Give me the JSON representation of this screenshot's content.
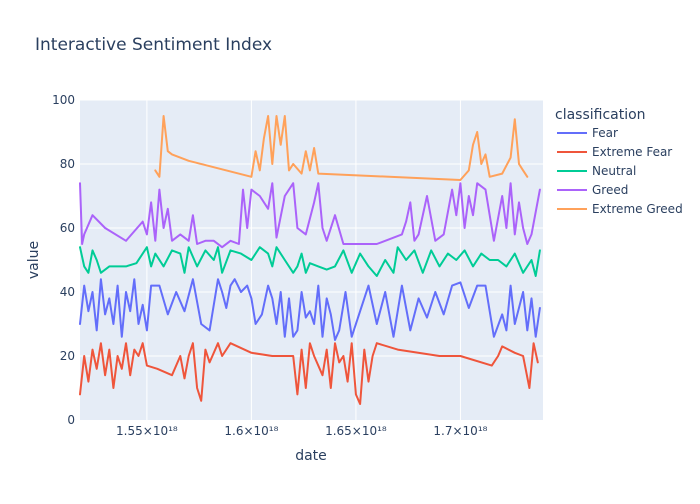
{
  "chart_data": {
    "type": "line",
    "title": "Interactive Sentiment Index",
    "xlabel": "date",
    "ylabel": "value",
    "xlim": [
      1.518e+18,
      1.7395e+18
    ],
    "ylim": [
      0,
      100
    ],
    "x_ticks": [
      {
        "value": 1.55e+18,
        "label": "1.55×10¹⁸"
      },
      {
        "value": 1.6e+18,
        "label": "1.6×10¹⁸"
      },
      {
        "value": 1.65e+18,
        "label": "1.65×10¹⁸"
      },
      {
        "value": 1.7e+18,
        "label": "1.7×10¹⁸"
      }
    ],
    "y_ticks": [
      0,
      20,
      40,
      60,
      80,
      100
    ],
    "legend_title": "classification",
    "legend_position": "right",
    "grid": true,
    "series": [
      {
        "name": "Fear",
        "color": "#636efa",
        "x": [
          1.518e+18,
          1.52e+18,
          1.522e+18,
          1.524e+18,
          1.526e+18,
          1.528e+18,
          1.53e+18,
          1.532e+18,
          1.534e+18,
          1.536e+18,
          1.538e+18,
          1.54e+18,
          1.542e+18,
          1.544e+18,
          1.546e+18,
          1.548e+18,
          1.55e+18,
          1.552e+18,
          1.556e+18,
          1.56e+18,
          1.564e+18,
          1.568e+18,
          1.572e+18,
          1.576e+18,
          1.58e+18,
          1.584e+18,
          1.586e+18,
          1.588e+18,
          1.59e+18,
          1.592e+18,
          1.595e+18,
          1.598e+18,
          1.6e+18,
          1.602e+18,
          1.605e+18,
          1.608e+18,
          1.61e+18,
          1.612e+18,
          1.614e+18,
          1.616e+18,
          1.618e+18,
          1.62e+18,
          1.622e+18,
          1.624e+18,
          1.626e+18,
          1.628e+18,
          1.63e+18,
          1.632e+18,
          1.634e+18,
          1.636e+18,
          1.638e+18,
          1.64e+18,
          1.642e+18,
          1.645e+18,
          1.648e+18,
          1.652e+18,
          1.656e+18,
          1.66e+18,
          1.664e+18,
          1.668e+18,
          1.672e+18,
          1.676e+18,
          1.68e+18,
          1.684e+18,
          1.688e+18,
          1.692e+18,
          1.696e+18,
          1.7e+18,
          1.704e+18,
          1.708e+18,
          1.712e+18,
          1.716e+18,
          1.72e+18,
          1.722e+18,
          1.724e+18,
          1.726e+18,
          1.73e+18,
          1.732e+18,
          1.734e+18,
          1.736e+18,
          1.738e+18
        ],
        "values": [
          30,
          42,
          34,
          40,
          28,
          44,
          33,
          38,
          30,
          42,
          26,
          40,
          34,
          44,
          30,
          36,
          28,
          42,
          42,
          33,
          40,
          34,
          44,
          30,
          28,
          44,
          40,
          35,
          42,
          44,
          40,
          42,
          38,
          30,
          33,
          42,
          38,
          30,
          40,
          26,
          38,
          26,
          28,
          40,
          32,
          34,
          30,
          42,
          26,
          38,
          33,
          25,
          28,
          40,
          26,
          34,
          42,
          30,
          40,
          26,
          42,
          28,
          38,
          32,
          40,
          33,
          42,
          43,
          35,
          42,
          42,
          26,
          33,
          28,
          42,
          30,
          40,
          28,
          38,
          26,
          35
        ]
      },
      {
        "name": "Extreme Fear",
        "color": "#ef553b",
        "x": [
          1.518e+18,
          1.52e+18,
          1.522e+18,
          1.524e+18,
          1.526e+18,
          1.528e+18,
          1.53e+18,
          1.532e+18,
          1.534e+18,
          1.536e+18,
          1.538e+18,
          1.54e+18,
          1.542e+18,
          1.544e+18,
          1.546e+18,
          1.548e+18,
          1.55e+18,
          1.555e+18,
          1.562e+18,
          1.566e+18,
          1.568e+18,
          1.57e+18,
          1.572e+18,
          1.574e+18,
          1.576e+18,
          1.578e+18,
          1.58e+18,
          1.584e+18,
          1.586e+18,
          1.59e+18,
          1.6e+18,
          1.61e+18,
          1.62e+18,
          1.622e+18,
          1.624e+18,
          1.626e+18,
          1.628e+18,
          1.63e+18,
          1.634e+18,
          1.636e+18,
          1.638e+18,
          1.64e+18,
          1.642e+18,
          1.644e+18,
          1.646e+18,
          1.648e+18,
          1.65e+18,
          1.652e+18,
          1.654e+18,
          1.656e+18,
          1.658e+18,
          1.66e+18,
          1.67e+18,
          1.69e+18,
          1.7e+18,
          1.715e+18,
          1.718e+18,
          1.72e+18,
          1.726e+18,
          1.73e+18,
          1.733e+18,
          1.735e+18,
          1.737e+18
        ],
        "values": [
          8,
          20,
          12,
          22,
          16,
          24,
          14,
          22,
          10,
          20,
          16,
          24,
          14,
          22,
          20,
          24,
          17,
          16,
          14,
          20,
          13,
          20,
          24,
          10,
          6,
          22,
          18,
          24,
          20,
          24,
          21,
          20,
          20,
          8,
          22,
          10,
          24,
          20,
          14,
          22,
          10,
          24,
          18,
          20,
          12,
          24,
          8,
          5,
          22,
          12,
          20,
          24,
          22,
          20,
          20,
          17,
          20,
          23,
          21,
          20,
          10,
          24,
          18
        ]
      },
      {
        "name": "Neutral",
        "color": "#00cc96",
        "x": [
          1.518e+18,
          1.52e+18,
          1.522e+18,
          1.524e+18,
          1.526e+18,
          1.528e+18,
          1.532e+18,
          1.536e+18,
          1.54e+18,
          1.545e+18,
          1.55e+18,
          1.552e+18,
          1.554e+18,
          1.558e+18,
          1.562e+18,
          1.566e+18,
          1.568e+18,
          1.57e+18,
          1.574e+18,
          1.578e+18,
          1.582e+18,
          1.584e+18,
          1.586e+18,
          1.59e+18,
          1.595e+18,
          1.6e+18,
          1.604e+18,
          1.608e+18,
          1.61e+18,
          1.612e+18,
          1.616e+18,
          1.62e+18,
          1.622e+18,
          1.624e+18,
          1.626e+18,
          1.628e+18,
          1.632e+18,
          1.636e+18,
          1.64e+18,
          1.644e+18,
          1.648e+18,
          1.652e+18,
          1.656e+18,
          1.66e+18,
          1.664e+18,
          1.668e+18,
          1.67e+18,
          1.674e+18,
          1.678e+18,
          1.682e+18,
          1.686e+18,
          1.69e+18,
          1.694e+18,
          1.698e+18,
          1.702e+18,
          1.706e+18,
          1.71e+18,
          1.714e+18,
          1.718e+18,
          1.722e+18,
          1.726e+18,
          1.73e+18,
          1.734e+18,
          1.736e+18,
          1.738e+18
        ],
        "values": [
          54,
          48,
          46,
          53,
          50,
          46,
          48,
          48,
          48,
          49,
          54,
          48,
          52,
          48,
          53,
          52,
          46,
          54,
          48,
          53,
          50,
          54,
          46,
          53,
          52,
          50,
          54,
          52,
          48,
          54,
          50,
          46,
          48,
          52,
          46,
          49,
          48,
          47,
          48,
          53,
          46,
          52,
          48,
          45,
          50,
          46,
          54,
          50,
          53,
          46,
          53,
          48,
          52,
          50,
          53,
          48,
          52,
          50,
          50,
          48,
          52,
          46,
          50,
          45,
          53
        ]
      },
      {
        "name": "Greed",
        "color": "#ab63fa",
        "x": [
          1.518e+18,
          1.519e+18,
          1.52e+18,
          1.524e+18,
          1.53e+18,
          1.54e+18,
          1.548e+18,
          1.55e+18,
          1.552e+18,
          1.554e+18,
          1.556e+18,
          1.558e+18,
          1.56e+18,
          1.562e+18,
          1.566e+18,
          1.57e+18,
          1.572e+18,
          1.574e+18,
          1.578e+18,
          1.582e+18,
          1.586e+18,
          1.59e+18,
          1.594e+18,
          1.596e+18,
          1.598e+18,
          1.6e+18,
          1.604e+18,
          1.608e+18,
          1.61e+18,
          1.612e+18,
          1.616e+18,
          1.62e+18,
          1.622e+18,
          1.626e+18,
          1.63e+18,
          1.632e+18,
          1.634e+18,
          1.636e+18,
          1.64e+18,
          1.644e+18,
          1.648e+18,
          1.66e+18,
          1.672e+18,
          1.674e+18,
          1.676e+18,
          1.678e+18,
          1.68e+18,
          1.684e+18,
          1.688e+18,
          1.692e+18,
          1.696e+18,
          1.698e+18,
          1.7e+18,
          1.702e+18,
          1.704e+18,
          1.706e+18,
          1.708e+18,
          1.712e+18,
          1.716e+18,
          1.72e+18,
          1.722e+18,
          1.724e+18,
          1.726e+18,
          1.728e+18,
          1.73e+18,
          1.732e+18,
          1.734e+18,
          1.738e+18
        ],
        "values": [
          74,
          55,
          58,
          64,
          60,
          56,
          62,
          58,
          68,
          56,
          72,
          60,
          66,
          56,
          58,
          56,
          64,
          55,
          56,
          56,
          54,
          56,
          55,
          72,
          60,
          72,
          70,
          66,
          74,
          57,
          70,
          74,
          60,
          58,
          68,
          74,
          60,
          56,
          64,
          55,
          55,
          55,
          58,
          62,
          68,
          56,
          58,
          70,
          56,
          58,
          72,
          64,
          74,
          60,
          70,
          64,
          74,
          72,
          56,
          70,
          60,
          74,
          58,
          68,
          60,
          55,
          58,
          72
        ]
      },
      {
        "name": "Extreme Greed",
        "color": "#ffa15a",
        "x": [
          1.554e+18,
          1.556e+18,
          1.558e+18,
          1.56e+18,
          1.562e+18,
          1.57e+18,
          1.6e+18,
          1.602e+18,
          1.604e+18,
          1.606e+18,
          1.608e+18,
          1.61e+18,
          1.612e+18,
          1.614e+18,
          1.616e+18,
          1.618e+18,
          1.62e+18,
          1.624e+18,
          1.626e+18,
          1.628e+18,
          1.63e+18,
          1.632e+18,
          1.7e+18,
          1.704e+18,
          1.706e+18,
          1.708e+18,
          1.71e+18,
          1.712e+18,
          1.714e+18,
          1.72e+18,
          1.724e+18,
          1.726e+18,
          1.728e+18,
          1.73e+18,
          1.732e+18
        ],
        "values": [
          78,
          76,
          95,
          84,
          83,
          81,
          76,
          84,
          78,
          88,
          95,
          80,
          95,
          86,
          95,
          78,
          80,
          77,
          84,
          78,
          85,
          77,
          75,
          78,
          86,
          90,
          80,
          83,
          76,
          77,
          82,
          94,
          80,
          78,
          76
        ]
      }
    ]
  }
}
